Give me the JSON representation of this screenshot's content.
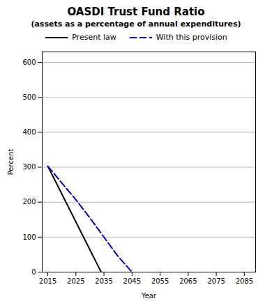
{
  "chart_data": {
    "type": "line",
    "title": "OASDI Trust Fund Ratio",
    "subtitle": "(assets as a percentage of annual expenditures)",
    "xlabel": "Year",
    "ylabel": "Percent",
    "xlim": [
      2013,
      2089
    ],
    "ylim": [
      0,
      630
    ],
    "xticks": [
      2015,
      2025,
      2035,
      2045,
      2055,
      2065,
      2075,
      2085
    ],
    "yticks": [
      0,
      100,
      200,
      300,
      400,
      500,
      600
    ],
    "grid": "y",
    "legend": "top",
    "series": [
      {
        "name": "Present law",
        "color": "#000000",
        "line_style": "solid",
        "x": [
          2015,
          2034
        ],
        "values": [
          303,
          0
        ]
      },
      {
        "name": "With this provision",
        "color": "#0000cc",
        "line_style": "dashed",
        "x": [
          2015,
          2020,
          2025,
          2030,
          2035,
          2040,
          2045
        ],
        "values": [
          303,
          255,
          207,
          155,
          100,
          45,
          0
        ]
      }
    ]
  }
}
